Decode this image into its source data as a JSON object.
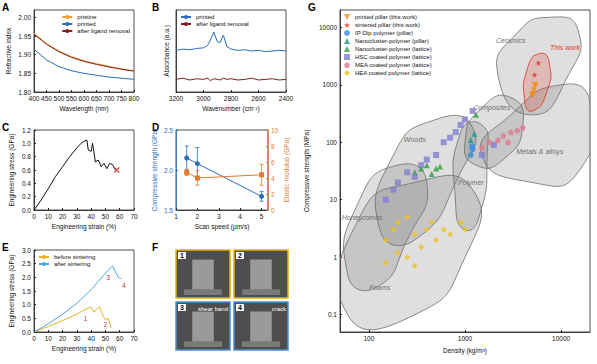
{
  "chart_data": [
    {
      "title": "A",
      "type": "line",
      "xlabel": "Wavelength (nm)",
      "ylabel": "Refractive index",
      "x": [
        400,
        450,
        500,
        550,
        600,
        650,
        700,
        750,
        800
      ],
      "series": [
        {
          "name": "pristine",
          "color": "#f0a030",
          "values": [
            1.958,
            1.93,
            1.91,
            1.895,
            1.884,
            1.876,
            1.869,
            1.862,
            1.857
          ]
        },
        {
          "name": "printed",
          "color": "#2a6ebb",
          "values": [
            1.915,
            1.886,
            1.868,
            1.857,
            1.85,
            1.845,
            1.84,
            1.837,
            1.834
          ]
        },
        {
          "name": "after ligand removal",
          "color": "#8b1a1a",
          "values": [
            1.955,
            1.928,
            1.908,
            1.893,
            1.882,
            1.874,
            1.867,
            1.861,
            1.856
          ]
        }
      ],
      "xlim": [
        400,
        800
      ],
      "xticks": [
        400,
        450,
        500,
        550,
        600,
        650,
        700,
        750,
        800
      ],
      "ylim": [
        1.8,
        2.02
      ],
      "yticks": [
        {
          "value": 1.8,
          "label": "1.80"
        },
        1.85,
        {
          "value": 1.9,
          "label": "1.90"
        },
        1.95,
        {
          "value": 2,
          "label": "2.00"
        }
      ],
      "legend": "upper right"
    },
    {
      "title": "B",
      "type": "line",
      "xlabel": "Wavenumber (cm⁻¹)",
      "ylabel": "Absorbance (a.u.)",
      "x": [
        3200,
        3150,
        3100,
        3050,
        3000,
        2970,
        2950,
        2925,
        2900,
        2880,
        2855,
        2830,
        2800,
        2750,
        2700,
        2650,
        2600,
        2550,
        2500,
        2450,
        2400
      ],
      "series": [
        {
          "name": "printed",
          "color": "#2a6ebb",
          "values": [
            0.66,
            0.68,
            0.67,
            0.69,
            0.7,
            0.74,
            0.82,
            0.95,
            0.8,
            0.78,
            0.9,
            0.72,
            0.68,
            0.66,
            0.67,
            0.65,
            0.66,
            0.64,
            0.65,
            0.66,
            0.65
          ]
        },
        {
          "name": "after ligand removal",
          "color": "#8b1a1a",
          "values": [
            0.2,
            0.22,
            0.19,
            0.21,
            0.2,
            0.22,
            0.18,
            0.21,
            0.2,
            0.19,
            0.22,
            0.2,
            0.21,
            0.19,
            0.2,
            0.22,
            0.19,
            0.2,
            0.21,
            0.19,
            0.2
          ]
        }
      ],
      "xlim": [
        3200,
        2400
      ],
      "xticks": [
        3200,
        3000,
        2800,
        2600,
        2400
      ],
      "ylim": [
        0,
        1.3
      ],
      "tick_labels": "x",
      "legend": "upper left"
    },
    {
      "title": "C",
      "type": "line",
      "xlabel": "Engineering strain (%)",
      "ylabel": "Engineering stress (GPa)",
      "x": [
        0,
        5,
        10,
        15,
        20,
        25,
        30,
        33,
        35,
        37,
        38,
        40,
        41,
        43,
        45,
        47,
        49,
        51,
        53,
        55,
        57
      ],
      "series": [
        {
          "color": "#111111",
          "values": [
            0,
            0.15,
            0.32,
            0.5,
            0.65,
            0.8,
            0.93,
            1.0,
            1.03,
            1.05,
            0.9,
            0.88,
            1.0,
            0.72,
            0.75,
            0.65,
            0.7,
            0.62,
            0.7,
            0.68,
            0.6
          ]
        },
        {
          "type": "scatter",
          "marker": "x",
          "color": "#e02020",
          "x": [
            58
          ],
          "values": [
            0.6
          ]
        }
      ],
      "xlim": [
        0,
        70
      ],
      "xticks": [
        0,
        10,
        20,
        30,
        40,
        50,
        60,
        70
      ],
      "ylim": [
        0,
        1.2
      ],
      "yticks": [
        {
          "value": 0,
          "label": "0.0"
        },
        0.2,
        0.4,
        0.6,
        0.8,
        {
          "value": 1,
          "label": "1.0"
        },
        1.2
      ]
    },
    {
      "title": "D",
      "type": "line",
      "xlabel": "Scan speed (μm/s)",
      "ylabel": "Compressive strength (GPa)",
      "y2label": "Elastic modulus (GPa)",
      "x": [
        1.5,
        2,
        5
      ],
      "series": [
        {
          "color": "#2a6ebb",
          "marker": "circle",
          "values": [
            2.15,
            2.08,
            1.67
          ],
          "errors": [
            0.15,
            0.2,
            0.06
          ]
        },
        {
          "color": "#e07a30",
          "marker": "square",
          "values": [
            4.7,
            4.0,
            4.4
          ],
          "errors": [
            0.4,
            0.9,
            1.3
          ],
          "axis": "y2"
        }
      ],
      "xlim": [
        1,
        5.3
      ],
      "xticks": [
        1,
        2,
        3,
        4,
        5
      ],
      "ylim": [
        1.5,
        2.5
      ],
      "yticks": [
        1.5,
        {
          "value": 2,
          "label": "2.0"
        },
        2.5
      ],
      "y2lim": [
        0,
        10
      ],
      "y2ticks": [
        0,
        2,
        4,
        6,
        8,
        10
      ]
    },
    {
      "title": "E",
      "type": "line",
      "xlabel": "Engineering strain (%)",
      "ylabel": "Engineering stress (GPa)",
      "series": [
        {
          "name": "before sintering",
          "color": "#e8b020",
          "x": [
            0,
            10,
            20,
            30,
            35,
            38,
            40,
            42,
            44,
            46,
            48,
            50,
            52,
            54
          ],
          "values": [
            0,
            0.2,
            0.42,
            0.65,
            0.8,
            0.88,
            0.9,
            0.72,
            0.85,
            0.92,
            0.62,
            0.45,
            0.5,
            0.15
          ]
        },
        {
          "name": "after sintering",
          "color": "#4aa8e0",
          "x": [
            0,
            10,
            20,
            30,
            40,
            45,
            50,
            55,
            57,
            59,
            61
          ],
          "values": [
            0,
            0.3,
            0.65,
            1.05,
            1.55,
            1.85,
            2.15,
            2.42,
            2.2,
            2.0,
            1.95
          ]
        }
      ],
      "annotations": [
        {
          "text": "1",
          "x": 36,
          "y": 0.5
        },
        {
          "text": "2",
          "x": 50,
          "y": 0.28
        },
        {
          "text": "3",
          "x": 52,
          "y": 2.0
        },
        {
          "text": "4",
          "x": 63,
          "y": 1.7
        }
      ],
      "xlim": [
        0,
        70
      ],
      "xticks": [
        0,
        10,
        20,
        30,
        40,
        50,
        60,
        70
      ],
      "ylim": [
        0,
        3
      ],
      "yticks": [
        {
          "value": 0,
          "label": "0.0"
        },
        0.5,
        {
          "value": 1,
          "label": "1.0"
        },
        1.5,
        {
          "value": 2,
          "label": "2.0"
        },
        2.5,
        {
          "value": 3,
          "label": "3.0"
        }
      ],
      "legend": "upper left"
    },
    {
      "title": "F",
      "type": "images",
      "images": [
        {
          "label": "1",
          "color": "#e8b400"
        },
        {
          "label": "2",
          "color": "#e8b400"
        },
        {
          "label": "3",
          "color": "#4a90d0",
          "annotation": "shear band"
        },
        {
          "label": "4",
          "color": "#4a90d0",
          "annotation": "crack"
        }
      ]
    },
    {
      "title": "G",
      "type": "scatter",
      "log": true,
      "xlabel": "Density (kg/m³)",
      "ylabel": "Compressive strength (MPa)",
      "series": [
        {
          "name": "printed pillar (this work)",
          "color": "#f08c1a",
          "marker": "triangle-down",
          "x": [
            5000,
            5200,
            5400,
            5100,
            5300
          ],
          "values": [
            650,
            800,
            950,
            700,
            1000
          ]
        },
        {
          "name": "sintered pillar (this work)",
          "color": "#e03020",
          "marker": "star",
          "x": [
            5300,
            5800
          ],
          "values": [
            1500,
            2400
          ]
        },
        {
          "name": "IP-Dip polymer (pillar)",
          "color": "#3a8de0",
          "marker": "circle",
          "x": [
            1150,
            1200,
            1180
          ],
          "values": [
            60,
            75,
            85
          ]
        },
        {
          "name": "Nanocluster-polymer (pillar)",
          "color": "#1a9a8a",
          "marker": "triangle",
          "x": [
            1150,
            1250
          ],
          "values": [
            110,
            140
          ]
        },
        {
          "name": "Nanocluster-polymer (lattice)",
          "color": "#2e9e3e",
          "marker": "triangle",
          "x": [
            300,
            350,
            400,
            450,
            500,
            550,
            1300
          ],
          "values": [
            30,
            35,
            40,
            28,
            35,
            38,
            300
          ]
        },
        {
          "name": "HSC coated polymer (lattice)",
          "color": "#8080d0",
          "marker": "square",
          "x": [
            150,
            180,
            200,
            250,
            300,
            350,
            400,
            500,
            600,
            800,
            1000,
            1200,
            900,
            700,
            1500,
            2000
          ],
          "values": [
            10,
            15,
            20,
            30,
            25,
            40,
            50,
            60,
            100,
            150,
            250,
            350,
            200,
            120,
            60,
            90
          ]
        },
        {
          "name": "MEA coated polymer (lattice)",
          "color": "#e07890",
          "marker": "pentagon",
          "x": [
            1500,
            1800,
            2200,
            2500,
            3000,
            3500,
            2800,
            4000
          ],
          "values": [
            80,
            100,
            110,
            130,
            150,
            160,
            100,
            180
          ]
        },
        {
          "name": "HEA coated polymer (lattice)",
          "color": "#f0c020",
          "marker": "diamond",
          "x": [
            150,
            180,
            200,
            250,
            300,
            350,
            400,
            450,
            500,
            600,
            700,
            150,
            200,
            250,
            300,
            900,
            1000
          ],
          "values": [
            2,
            3,
            4,
            5,
            2.5,
            1.5,
            3,
            4,
            2,
            3,
            2.5,
            0.8,
            1.2,
            1,
            0.7,
            4,
            3
          ]
        }
      ],
      "regions": [
        {
          "name": "Ceramics",
          "color": "#6e6e6e",
          "x": [
            2200,
            3500,
            8000,
            15000,
            12000,
            5000
          ],
          "y": [
            1500,
            8000,
            15000,
            9000,
            1500,
            300
          ],
          "label_at": [
            3000,
            6000
          ]
        },
        {
          "name": "Composites",
          "color": "#6e6e6e",
          "x": [
            1000,
            1500,
            3000,
            4000,
            2500,
            1300
          ],
          "y": [
            100,
            400,
            600,
            200,
            50,
            40
          ],
          "label_at": [
            1900,
            400
          ]
        },
        {
          "name": "Woods",
          "color": "#6e6e6e",
          "x": [
            130,
            180,
            500,
            1200,
            900,
            300
          ],
          "y": [
            3,
            60,
            250,
            180,
            30,
            2
          ],
          "label_at": [
            300,
            110
          ]
        },
        {
          "name": "Polymer",
          "color": "#6e6e6e",
          "x": [
            800,
            900,
            1500,
            1700,
            1400,
            1000
          ],
          "y": [
            8,
            150,
            200,
            60,
            5,
            3
          ],
          "label_at": [
            1150,
            20
          ]
        },
        {
          "name": "Metals & alloys",
          "color": "#6e6e6e",
          "x": [
            1500,
            3000,
            10000,
            20000,
            15000,
            5000
          ],
          "y": [
            60,
            300,
            1000,
            500,
            30,
            20
          ],
          "label_at": [
            6000,
            70
          ]
        },
        {
          "name": "Honeycombs",
          "color": "#6e6e6e",
          "x": [
            60,
            80,
            200,
            400,
            250,
            120
          ],
          "y": [
            0.5,
            10,
            40,
            20,
            2,
            0.3
          ],
          "label_at": [
            85,
            5
          ]
        },
        {
          "name": "Foams",
          "color": "#6e6e6e",
          "x": [
            60,
            80,
            300,
            1200,
            1000,
            300
          ],
          "y": [
            0.1,
            5,
            20,
            15,
            1,
            0.1
          ],
          "label_at": [
            130,
            0.3
          ]
        },
        {
          "name": "This work",
          "color": "#e03020",
          "x": [
            4200,
            4500,
            6000,
            7500,
            7000,
            5000
          ],
          "y": [
            500,
            2000,
            3500,
            2500,
            700,
            350
          ],
          "label_at": [
            11000,
            4500
          ]
        }
      ],
      "xlim": [
        50,
        20000
      ],
      "xticks": [
        100,
        1000,
        10000
      ],
      "ylim": [
        0.05,
        20000
      ],
      "yticks": [
        0.1,
        1,
        10,
        100,
        1000,
        10000
      ],
      "legend": "upper left"
    }
  ]
}
